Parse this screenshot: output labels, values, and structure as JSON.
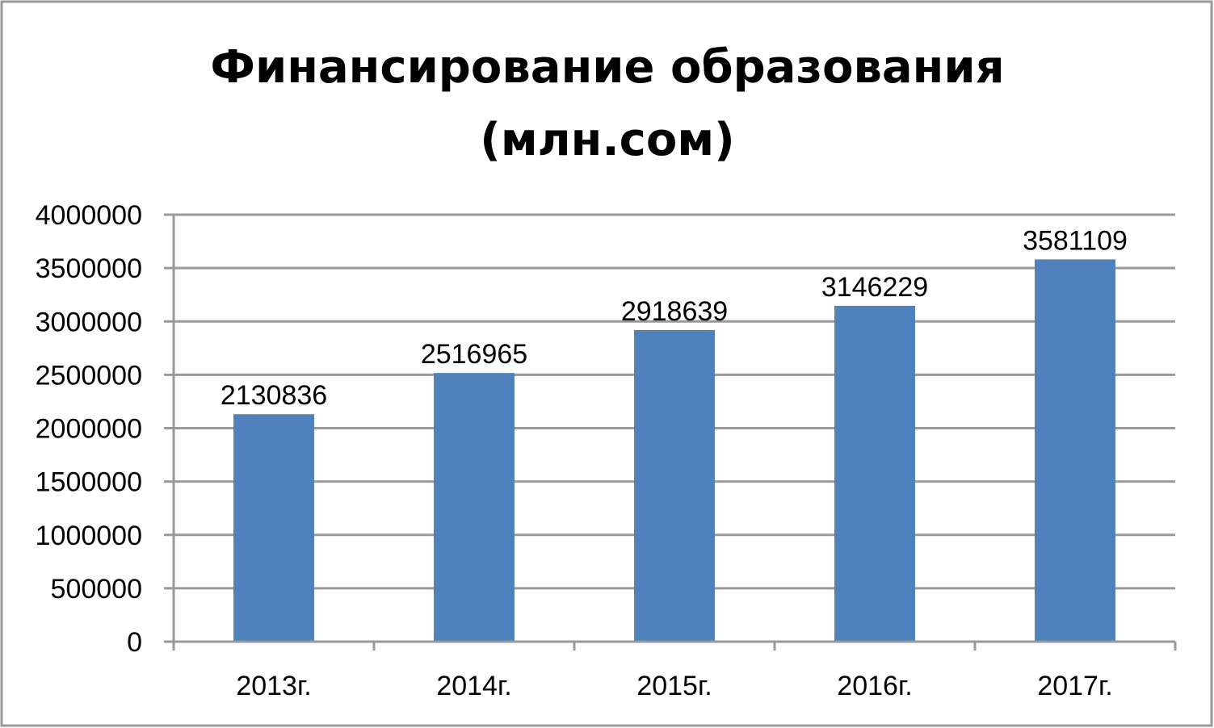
{
  "chart_data": {
    "type": "bar",
    "title": [
      "Финансирование образования",
      "(млн.сом)"
    ],
    "categories": [
      "2013г.",
      "2014г.",
      "2015г.",
      "2016г.",
      "2017г."
    ],
    "values": [
      2130836,
      2516965,
      2918639,
      3146229,
      3581109
    ],
    "data_labels": [
      "2130836",
      "2516965",
      "2918639",
      "3146229",
      "3581109"
    ],
    "y_ticks": [
      "0",
      "500000",
      "1000000",
      "1500000",
      "2000000",
      "2500000",
      "3000000",
      "3500000",
      "4000000"
    ],
    "ylim": [
      0,
      4000000
    ],
    "ystep": 500000,
    "grid": true,
    "legend": "none",
    "xlabel": "",
    "ylabel": "",
    "colors": {
      "bar": "#4F81BD",
      "grid": "#999999",
      "border": "#999999"
    }
  }
}
